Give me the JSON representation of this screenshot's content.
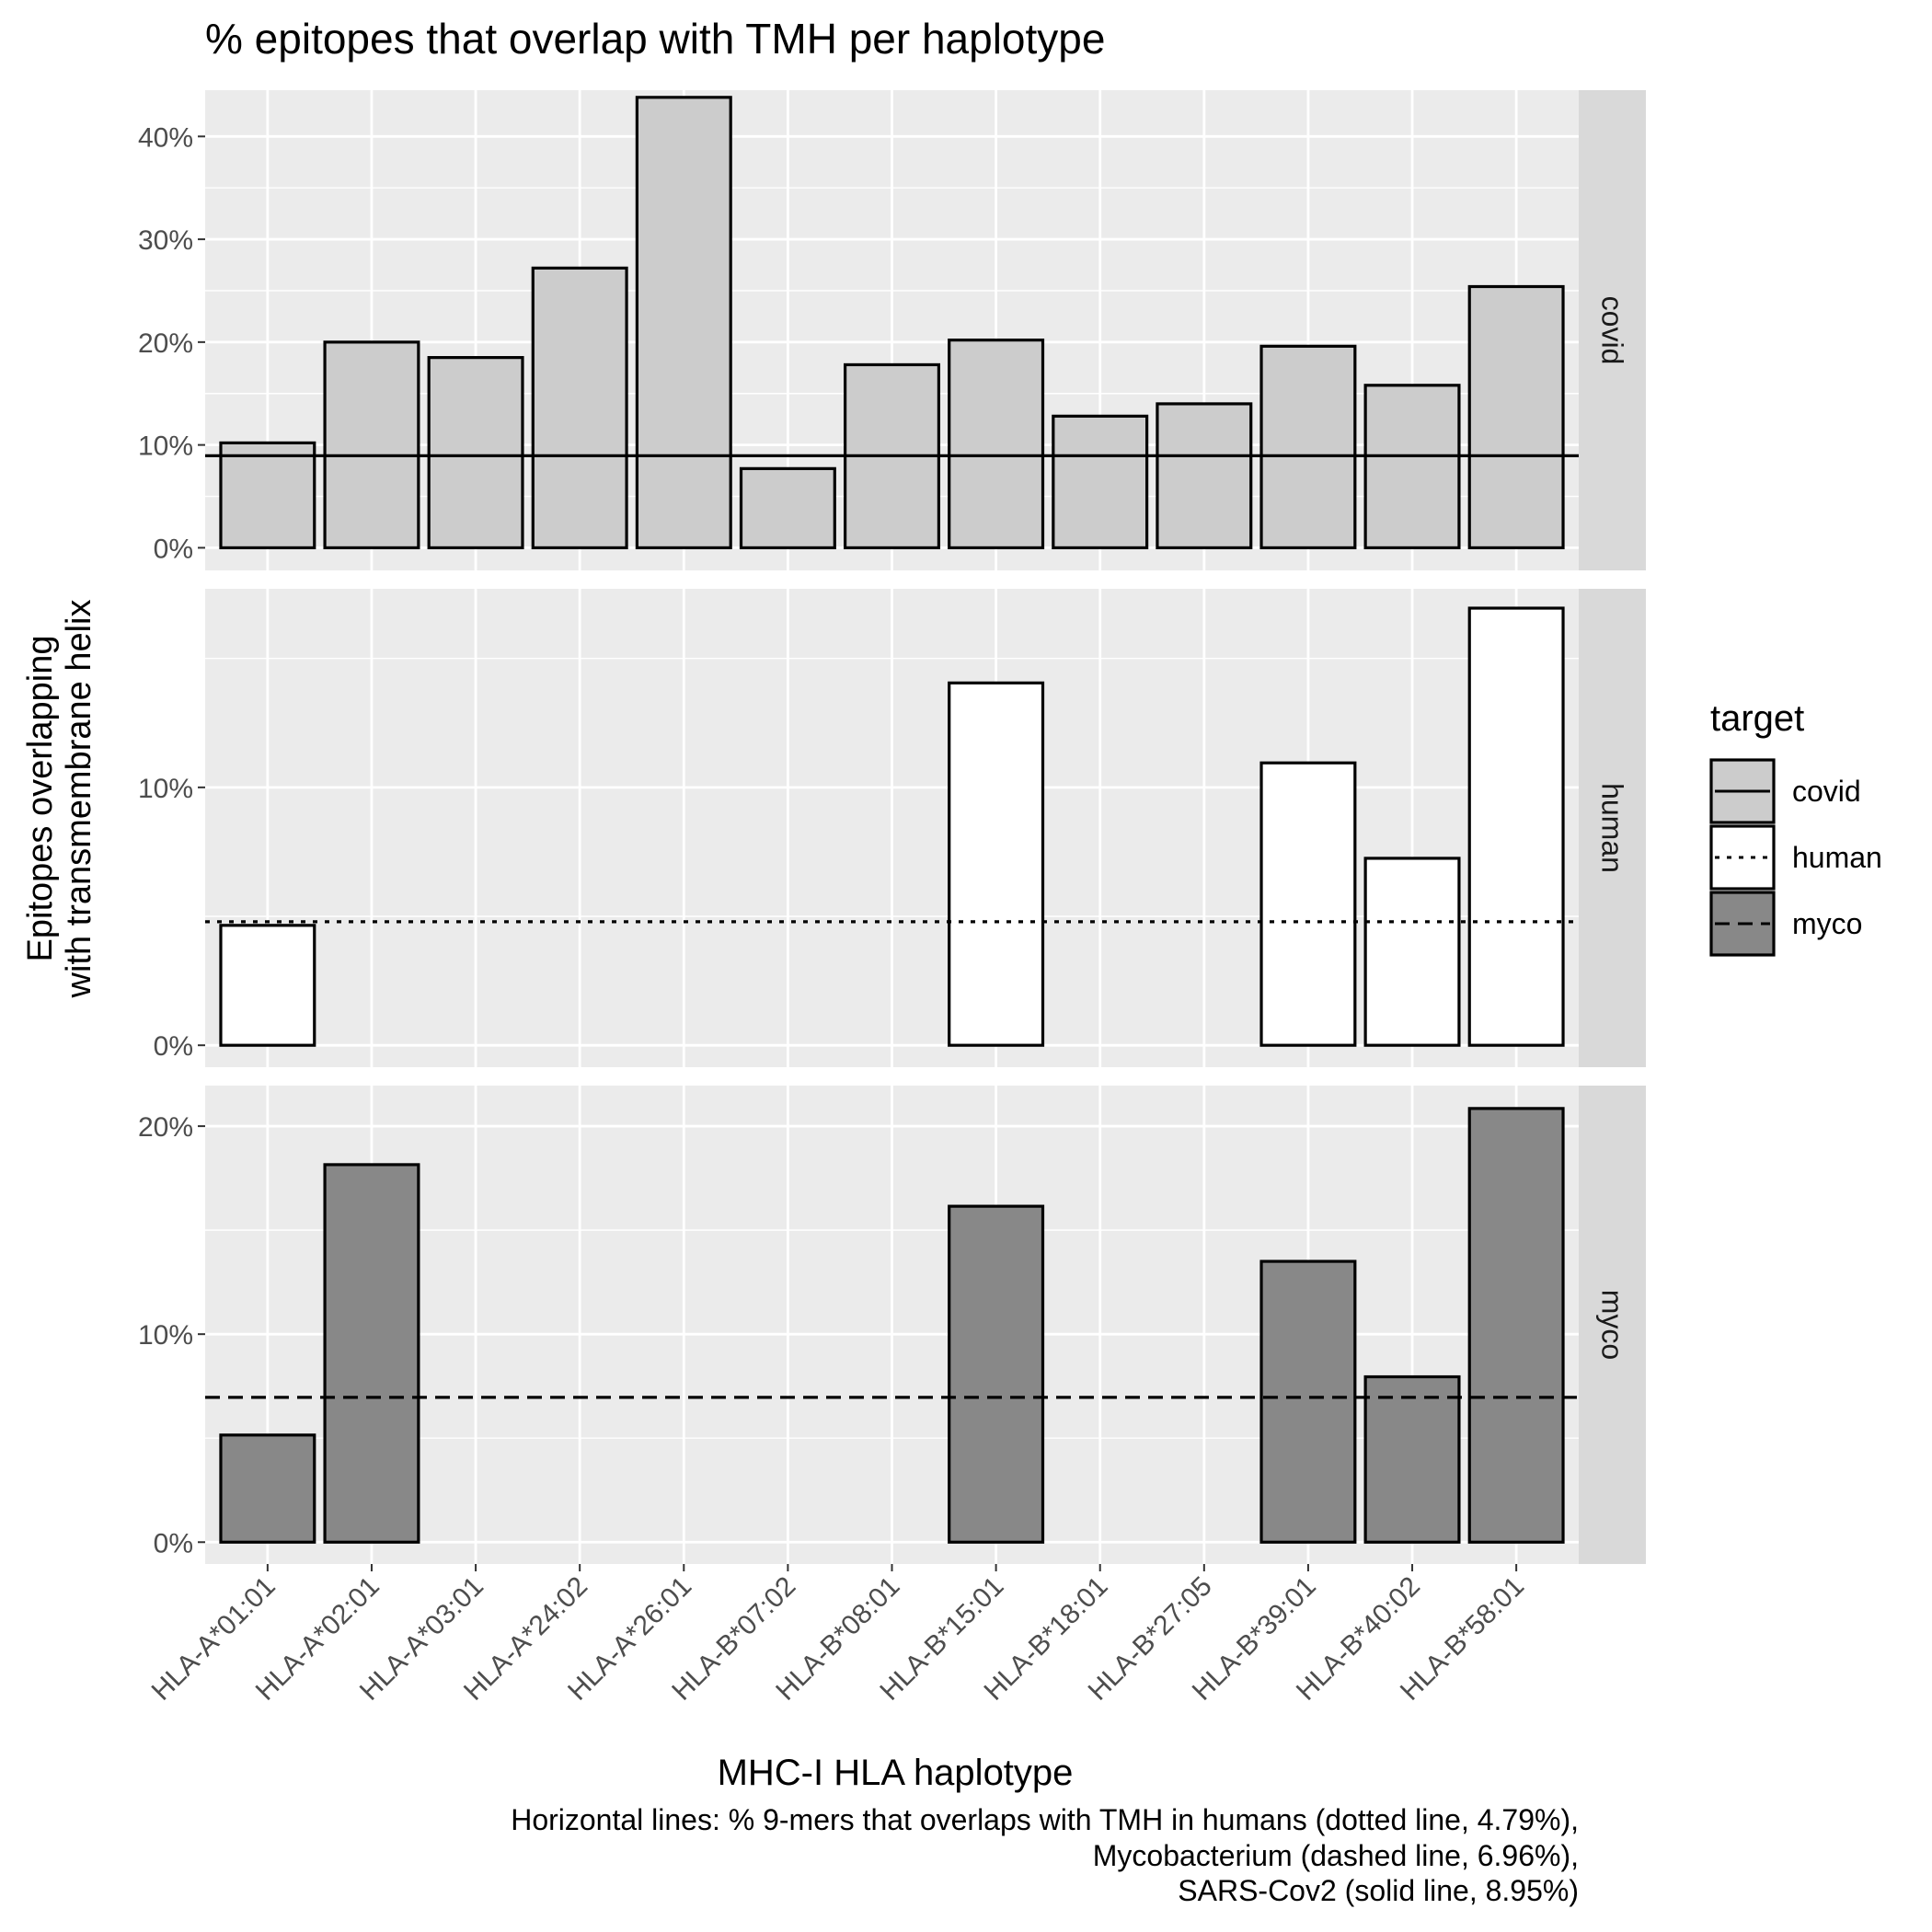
{
  "chart_data": {
    "type": "bar",
    "title": "% epitopes that overlap with TMH per haplotype",
    "xlabel": "MHC-I HLA haplotype",
    "ylabel_lines": [
      "Epitopes overlapping",
      "with transmembrane helix"
    ],
    "categories": [
      "HLA-A*01:01",
      "HLA-A*02:01",
      "HLA-A*03:01",
      "HLA-A*24:02",
      "HLA-A*26:01",
      "HLA-B*07:02",
      "HLA-B*08:01",
      "HLA-B*15:01",
      "HLA-B*18:01",
      "HLA-B*27:05",
      "HLA-B*39:01",
      "HLA-B*40:02",
      "HLA-B*58:01"
    ],
    "grid": true,
    "facets": [
      {
        "strip": "covid",
        "fill": "#cccccc",
        "ylim": [
          -2.2,
          44.5
        ],
        "yticks": [
          0,
          10,
          20,
          30,
          40
        ],
        "ytick_labels": [
          "0%",
          "10%",
          "20%",
          "30%",
          "40%"
        ],
        "values": [
          10.2,
          20.0,
          18.5,
          27.2,
          43.8,
          7.7,
          17.8,
          20.2,
          12.8,
          14.0,
          19.6,
          15.8,
          25.4
        ],
        "hline": {
          "value": 8.95,
          "style": "solid"
        }
      },
      {
        "strip": "human",
        "fill": "#ffffff",
        "ylim": [
          -0.85,
          17.7
        ],
        "yticks": [
          0,
          10
        ],
        "ytick_labels": [
          "0%",
          "10%"
        ],
        "values": [
          4.65,
          null,
          null,
          null,
          null,
          null,
          null,
          14.05,
          null,
          null,
          10.95,
          7.25,
          16.95
        ],
        "hline": {
          "value": 4.79,
          "style": "dotted"
        }
      },
      {
        "strip": "myco",
        "fill": "#888888",
        "ylim": [
          -1.05,
          21.95
        ],
        "yticks": [
          0,
          10,
          20
        ],
        "ytick_labels": [
          "0%",
          "10%",
          "20%"
        ],
        "values": [
          5.15,
          18.15,
          null,
          null,
          null,
          null,
          null,
          16.15,
          null,
          null,
          13.5,
          7.95,
          20.85
        ],
        "hline": {
          "value": 6.96,
          "style": "dashed"
        }
      }
    ],
    "legend": {
      "title": "target",
      "position": "right",
      "items": [
        {
          "label": "covid",
          "fill": "#cccccc",
          "line": "solid"
        },
        {
          "label": "human",
          "fill": "#ffffff",
          "line": "dotted"
        },
        {
          "label": "myco",
          "fill": "#888888",
          "line": "dashed"
        }
      ]
    },
    "caption_lines": [
      "Horizontal lines: % 9-mers that overlaps with TMH in humans (dotted line, 4.79%),",
      "Mycobacterium (dashed line, 6.96%),",
      "SARS-Cov2 (solid line, 8.95%)"
    ]
  },
  "colors": {
    "panel_background": "#ebebeb",
    "strip_background": "#d9d9d9",
    "grid": "#ffffff",
    "bar_outline": "#000000",
    "axis_text": "#4d4d4d",
    "text": "#000000"
  }
}
